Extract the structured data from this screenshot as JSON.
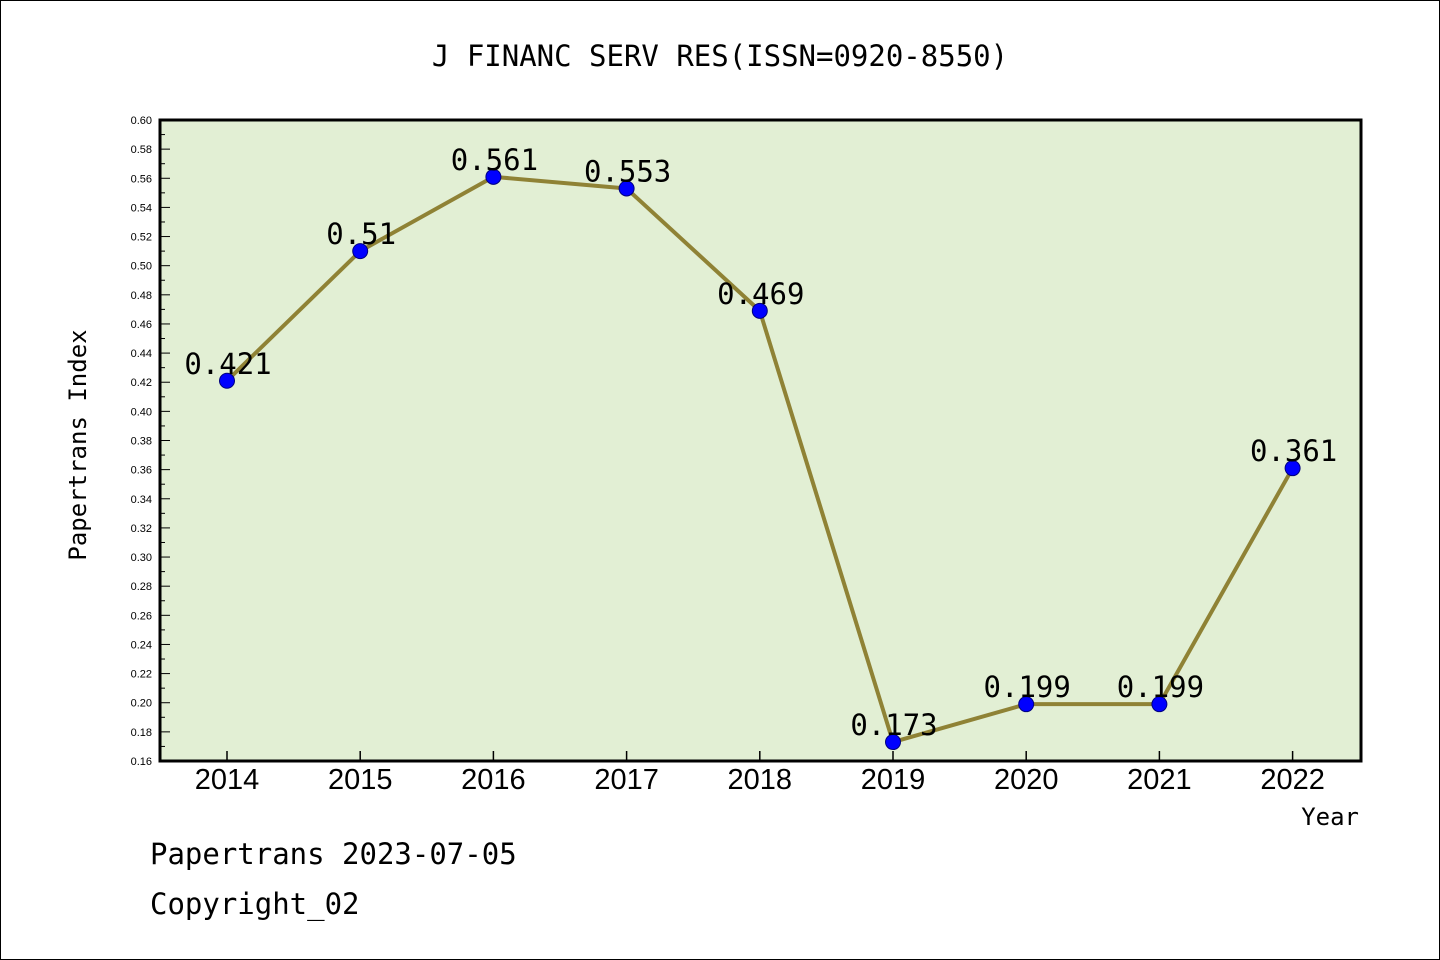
{
  "chart_data": {
    "type": "line",
    "title": "J FINANC SERV RES(ISSN=0920-8550)",
    "xlabel": "Year",
    "ylabel": "Papertrans Index",
    "categories": [
      "2014",
      "2015",
      "2016",
      "2017",
      "2018",
      "2019",
      "2020",
      "2021",
      "2022"
    ],
    "values": [
      0.421,
      0.51,
      0.561,
      0.553,
      0.469,
      0.173,
      0.199,
      0.199,
      0.361
    ],
    "data_labels": [
      "0.421",
      "0.51",
      "0.561",
      "0.553",
      "0.469",
      "0.173",
      "0.199",
      "0.199",
      "0.361"
    ],
    "ylim": [
      0.16,
      0.6
    ],
    "yticks": [
      "0.16",
      "0.18",
      "0.20",
      "0.22",
      "0.24",
      "0.26",
      "0.28",
      "0.30",
      "0.32",
      "0.34",
      "0.36",
      "0.38",
      "0.40",
      "0.42",
      "0.44",
      "0.46",
      "0.48",
      "0.50",
      "0.52",
      "0.54",
      "0.56",
      "0.58",
      "0.60"
    ],
    "grid": false,
    "colors": {
      "plot_background": "#e2efd4",
      "line": "#8f8235",
      "marker": "#0000ff",
      "marker_edge": "#000080"
    }
  },
  "footer": {
    "line1": "Papertrans 2023-07-05",
    "line2": "Copyright_02"
  }
}
